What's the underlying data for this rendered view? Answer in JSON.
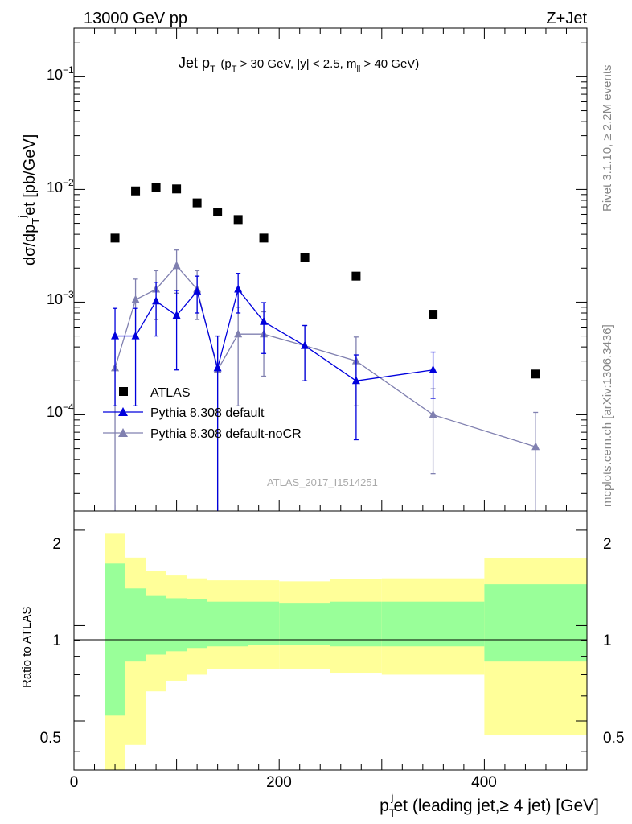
{
  "header": {
    "left": "13000 GeV pp",
    "right": "Z+Jet"
  },
  "plot_title": {
    "main": "Jet p",
    "main_sub": "T",
    "cut_pT": "(p",
    "cut_pT_sub": "T",
    "cut_pT_rest": " > 30 GeV, |y| < 2.5, m",
    "cut_m_sub": "ll",
    "cut_m_rest": " > 40 GeV)"
  },
  "side_labels": {
    "rivet": "Rivet 3.1.10, ≥ 2.2M events",
    "mcplots": "mcplots.cern.ch [arXiv:1306.3436]"
  },
  "watermark": "ATLAS_2017_I1514251",
  "axes": {
    "ylabel_main": "dσ/dp",
    "ylabel_main_sub": "T",
    "ylabel_main_sup": "j",
    "ylabel_main_rest": "et [pb/GeV]",
    "ylabel_ratio": "Ratio to ATLAS",
    "xlabel_p": "p",
    "xlabel_sub": "T",
    "xlabel_sup": "j",
    "xlabel_rest": "et (leading jet,≥ 4 jet) [GeV]",
    "y_main_ticks": [
      {
        "base": "10",
        "exp": "−1"
      },
      {
        "base": "10",
        "exp": "−2"
      },
      {
        "base": "10",
        "exp": "−3"
      },
      {
        "base": "10",
        "exp": "−4"
      }
    ],
    "y_ratio_ticks": [
      "2",
      "1",
      "0.5"
    ],
    "x_ticks": [
      "0",
      "200",
      "400"
    ]
  },
  "legend": {
    "atlas": "ATLAS",
    "pythia_default": "Pythia 8.308 default",
    "pythia_nocr": "Pythia 8.308 default-noCR"
  },
  "colors": {
    "atlas": "#000000",
    "pythia_default": "#0000dd",
    "pythia_nocr": "#8080b0",
    "band_inner": "#99ff99",
    "band_outer": "#ffff99"
  },
  "chart_data": {
    "type": "scatter",
    "title": "Jet pT (pT > 30 GeV, |y| < 2.5, mll > 40 GeV)",
    "xlabel": "pT jet (leading jet,≥ 4 jet) [GeV]",
    "ylabel": "dσ/dpT jet [pb/GeV]",
    "xlim": [
      0,
      500
    ],
    "ylim": [
      1.4e-05,
      0.27
    ],
    "yscale": "log",
    "ratio_ylim": [
      0.35,
      2.3
    ],
    "ratio_yscale": "log",
    "bins": [
      [
        30,
        50
      ],
      [
        50,
        70
      ],
      [
        70,
        90
      ],
      [
        90,
        110
      ],
      [
        110,
        130
      ],
      [
        130,
        150
      ],
      [
        150,
        170
      ],
      [
        170,
        200
      ],
      [
        200,
        250
      ],
      [
        250,
        300
      ],
      [
        300,
        400
      ],
      [
        400,
        500
      ]
    ],
    "series": [
      {
        "name": "ATLAS",
        "marker": "square",
        "x": [
          40,
          60,
          80,
          100,
          120,
          140,
          160,
          185,
          225,
          275,
          350,
          450
        ],
        "y": [
          0.0037,
          0.0097,
          0.0104,
          0.0101,
          0.0076,
          0.0063,
          0.0054,
          0.0037,
          0.0025,
          0.0017,
          0.00078,
          0.00023
        ]
      },
      {
        "name": "Pythia 8.308 default",
        "marker": "triangle",
        "x": [
          40,
          60,
          80,
          100,
          120,
          140,
          160,
          185,
          225,
          275,
          350
        ],
        "y": [
          0.0005,
          0.0005,
          0.00102,
          0.00076,
          0.00125,
          0.00026,
          0.0013,
          0.00067,
          0.00041,
          0.0002,
          0.00025
        ],
        "y_low": [
          0.00012,
          0.00012,
          0.0005,
          0.00025,
          0.0008,
          1.2e-05,
          0.0008,
          0.00035,
          0.0002,
          6e-05,
          0.00014
        ],
        "y_high": [
          0.00088,
          0.00088,
          0.0015,
          0.00127,
          0.0017,
          0.0005,
          0.0018,
          0.00099,
          0.00062,
          0.00034,
          0.00036
        ]
      },
      {
        "name": "Pythia 8.308 default-noCR",
        "marker": "triangle",
        "x": [
          40,
          60,
          80,
          100,
          120,
          140,
          160,
          185,
          225,
          275,
          350,
          450
        ],
        "y": [
          0.00026,
          0.00105,
          0.0013,
          0.0021,
          0.0013,
          0.00025,
          0.00052,
          0.00052,
          0.00041,
          0.0003,
          0.0001,
          5.2e-05
        ],
        "y_low": [
          1.2e-05,
          0.0005,
          0.0007,
          0.0012,
          0.0007,
          1.2e-05,
          0.00012,
          0.00022,
          0.0002,
          0.00012,
          3e-05,
          1.2e-05
        ],
        "y_high": [
          0.0005,
          0.0016,
          0.0019,
          0.0029,
          0.0019,
          0.0005,
          0.0009,
          0.00082,
          0.00062,
          0.00049,
          0.00017,
          0.000105
        ]
      }
    ],
    "ratio_bands": {
      "inner_low": [
        0.52,
        0.77,
        0.81,
        0.83,
        0.85,
        0.86,
        0.86,
        0.87,
        0.87,
        0.86,
        0.86,
        0.77
      ],
      "inner_high": [
        1.57,
        1.31,
        1.24,
        1.22,
        1.21,
        1.19,
        1.19,
        1.19,
        1.18,
        1.19,
        1.19,
        1.35
      ],
      "outer_low": [
        0.34,
        0.42,
        0.62,
        0.67,
        0.7,
        0.73,
        0.73,
        0.73,
        0.73,
        0.71,
        0.7,
        0.45
      ],
      "outer_high": [
        1.96,
        1.64,
        1.49,
        1.44,
        1.41,
        1.39,
        1.39,
        1.39,
        1.38,
        1.4,
        1.41,
        1.63
      ]
    }
  }
}
